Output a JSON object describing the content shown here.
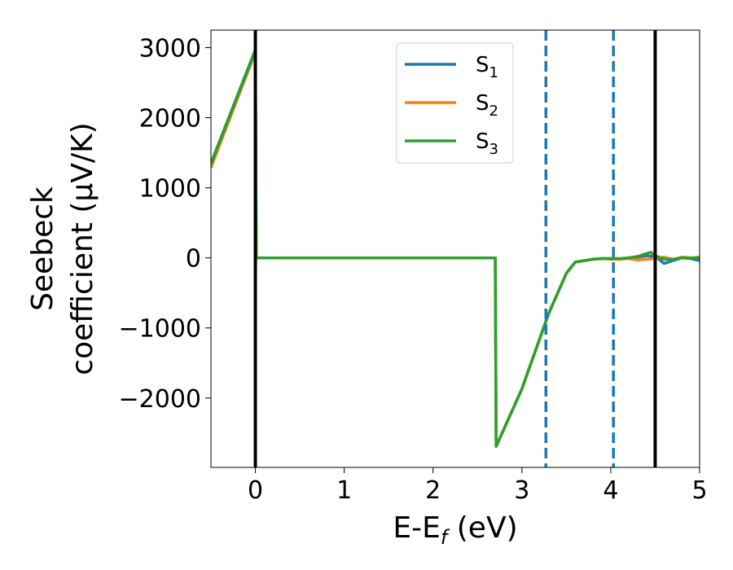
{
  "chart_data": {
    "type": "line",
    "xlabel_main": "E-E",
    "xlabel_sub": "f",
    "xlabel_unit": " (eV)",
    "ylabel_line1": "Seebeck",
    "ylabel_line2": "coefficient  (μV/K)",
    "xlim": [
      -0.5,
      5.0
    ],
    "ylim": [
      -2990,
      3250
    ],
    "x_ticks": [
      0,
      1,
      2,
      3,
      4,
      5
    ],
    "y_ticks": [
      -2000,
      -1000,
      0,
      1000,
      2000,
      3000
    ],
    "y_tick_labels": [
      "−2000",
      "−1000",
      "0",
      "1000",
      "2000",
      "3000"
    ],
    "grid": false,
    "legend_position": "top-center",
    "series": [
      {
        "name_main": "S",
        "name_sub": "1",
        "color": "#1f77b4",
        "x": [
          -0.5,
          0.0,
          0.01,
          2.7,
          2.71,
          3.0,
          3.3,
          3.5,
          3.6,
          3.7,
          3.8,
          3.9,
          4.0,
          4.1,
          4.2,
          4.3,
          4.4,
          4.5,
          4.6,
          4.7,
          4.8,
          4.9,
          5.0
        ],
        "y": [
          1350,
          2970,
          0,
          0,
          -2690,
          -1870,
          -800,
          -220,
          -60,
          -40,
          -20,
          -10,
          -10,
          -20,
          0,
          10,
          30,
          20,
          -80,
          -40,
          0,
          -10,
          -40
        ]
      },
      {
        "name_main": "S",
        "name_sub": "2",
        "color": "#ff7f0e",
        "x": [
          -0.5,
          0.0,
          0.01,
          2.7,
          2.71,
          3.0,
          3.3,
          3.5,
          3.6,
          3.7,
          3.8,
          3.9,
          4.0,
          4.1,
          4.2,
          4.3,
          4.4,
          4.5,
          4.6,
          4.7,
          4.8,
          4.9,
          5.0
        ],
        "y": [
          1290,
          2930,
          0,
          0,
          -2690,
          -1870,
          -800,
          -220,
          -60,
          -40,
          -20,
          -10,
          -20,
          -20,
          -10,
          -30,
          -20,
          -10,
          10,
          -20,
          10,
          0,
          10
        ]
      },
      {
        "name_main": "S",
        "name_sub": "3",
        "color": "#2ca02c",
        "x": [
          -0.5,
          0.0,
          0.01,
          2.7,
          2.71,
          3.0,
          3.3,
          3.5,
          3.6,
          3.7,
          3.8,
          3.9,
          4.0,
          4.1,
          4.2,
          4.3,
          4.4,
          4.45,
          4.5,
          4.6,
          4.7,
          4.8,
          4.9,
          5.0
        ],
        "y": [
          1340,
          2960,
          0,
          0,
          -2690,
          -1870,
          -800,
          -220,
          -60,
          -40,
          -20,
          -10,
          -10,
          -10,
          0,
          20,
          60,
          80,
          30,
          -20,
          -20,
          0,
          0,
          0
        ]
      }
    ],
    "vlines": [
      {
        "x": 0.0,
        "style": "solid",
        "color": "#000000"
      },
      {
        "x": 4.5,
        "style": "solid",
        "color": "#000000"
      },
      {
        "x": 3.27,
        "style": "dashed",
        "color": "#1f77b4"
      },
      {
        "x": 4.03,
        "style": "dashed",
        "color": "#1f77b4"
      }
    ]
  }
}
